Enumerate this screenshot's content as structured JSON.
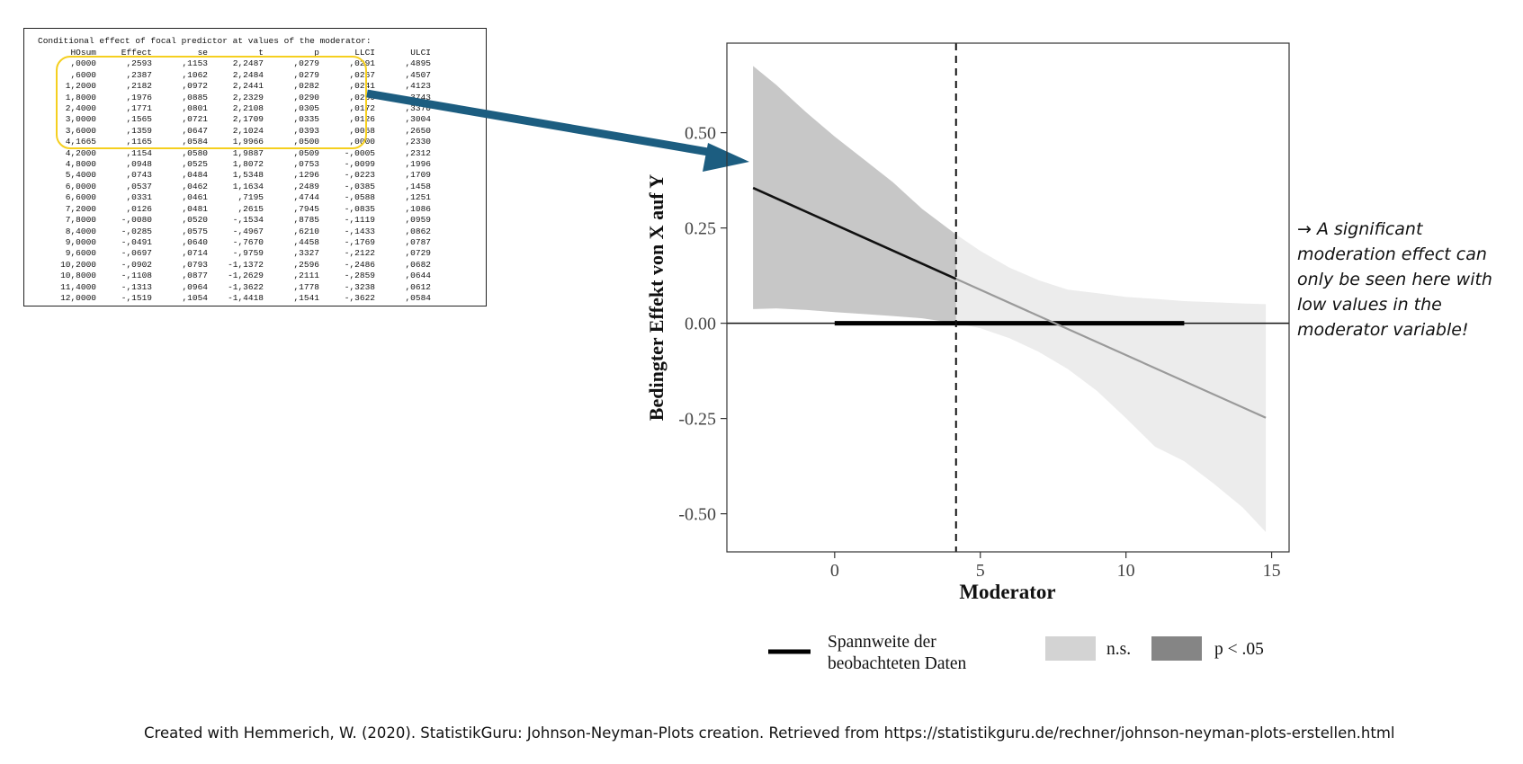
{
  "output_table": {
    "title": "Conditional effect of focal predictor at values of the moderator:",
    "columns": [
      "HOsum",
      "Effect",
      "se",
      "t",
      "p",
      "LLCI",
      "ULCI"
    ],
    "rows": [
      [
        ",0000",
        ",2593",
        ",1153",
        "2,2487",
        ",0279",
        ",0291",
        ",4895"
      ],
      [
        ",6000",
        ",2387",
        ",1062",
        "2,2484",
        ",0279",
        ",0267",
        ",4507"
      ],
      [
        "1,2000",
        ",2182",
        ",0972",
        "2,2441",
        ",0282",
        ",0241",
        ",4123"
      ],
      [
        "1,8000",
        ",1976",
        ",0885",
        "2,2329",
        ",0290",
        ",0209",
        ",3743"
      ],
      [
        "2,4000",
        ",1771",
        ",0801",
        "2,2108",
        ",0305",
        ",0172",
        ",3370"
      ],
      [
        "3,0000",
        ",1565",
        ",0721",
        "2,1709",
        ",0335",
        ",0126",
        ",3004"
      ],
      [
        "3,6000",
        ",1359",
        ",0647",
        "2,1024",
        ",0393",
        ",0068",
        ",2650"
      ],
      [
        "4,1665",
        ",1165",
        ",0584",
        "1,9966",
        ",0500",
        ",0000",
        ",2330"
      ],
      [
        "4,2000",
        ",1154",
        ",0580",
        "1,9887",
        ",0509",
        "-,0005",
        ",2312"
      ],
      [
        "4,8000",
        ",0948",
        ",0525",
        "1,8072",
        ",0753",
        "-,0099",
        ",1996"
      ],
      [
        "5,4000",
        ",0743",
        ",0484",
        "1,5348",
        ",1296",
        "-,0223",
        ",1709"
      ],
      [
        "6,0000",
        ",0537",
        ",0462",
        "1,1634",
        ",2489",
        "-,0385",
        ",1458"
      ],
      [
        "6,6000",
        ",0331",
        ",0461",
        ",7195",
        ",4744",
        "-,0588",
        ",1251"
      ],
      [
        "7,2000",
        ",0126",
        ",0481",
        ",2615",
        ",7945",
        "-,0835",
        ",1086"
      ],
      [
        "7,8000",
        "-,0080",
        ",0520",
        "-,1534",
        ",8785",
        "-,1119",
        ",0959"
      ],
      [
        "8,4000",
        "-,0285",
        ",0575",
        "-,4967",
        ",6210",
        "-,1433",
        ",0862"
      ],
      [
        "9,0000",
        "-,0491",
        ",0640",
        "-,7670",
        ",4458",
        "-,1769",
        ",0787"
      ],
      [
        "9,6000",
        "-,0697",
        ",0714",
        "-,9759",
        ",3327",
        "-,2122",
        ",0729"
      ],
      [
        "10,2000",
        "-,0902",
        ",0793",
        "-1,1372",
        ",2596",
        "-,2486",
        ",0682"
      ],
      [
        "10,8000",
        "-,1108",
        ",0877",
        "-1,2629",
        ",2111",
        "-,2859",
        ",0644"
      ],
      [
        "11,4000",
        "-,1313",
        ",0964",
        "-1,3622",
        ",1778",
        "-,3238",
        ",0612"
      ],
      [
        "12,0000",
        "-,1519",
        ",1054",
        "-1,4418",
        ",1541",
        "-,3622",
        ",0584"
      ]
    ]
  },
  "colors": {
    "highlight_box": "#f5cf1f",
    "arrow": "#1c5d80",
    "band_significant": "#c7c7c7",
    "band_ns": "#ececec",
    "line_significant": "#111111",
    "line_ns": "#9a9a9a",
    "legend_ns": "#d3d3d3",
    "legend_sig": "#858585"
  },
  "chart_data": {
    "type": "line",
    "xlabel": "Moderator",
    "ylabel": "Bedingter Effekt von X auf Y",
    "xlim": [
      -3.7,
      15.6
    ],
    "ylim": [
      -0.6,
      0.735
    ],
    "x_ticks": [
      0,
      5,
      10,
      15
    ],
    "y_ticks": [
      0.5,
      0.25,
      0.0,
      -0.25,
      -0.5
    ],
    "y_tick_labels": [
      "0.50",
      "0.25",
      "0.00",
      "-0.25",
      "-0.50"
    ],
    "johnson_neyman_point": 4.1665,
    "observed_range": [
      0,
      12
    ],
    "effect_line": {
      "x_start": -2.8,
      "y_start": 0.355,
      "x_end": 14.8,
      "y_end": -0.248
    },
    "ci_band": {
      "x": [
        -2.8,
        -2,
        -1,
        0,
        1,
        2,
        3,
        4.1665,
        5,
        6,
        7,
        8,
        9,
        10,
        11,
        12,
        13,
        14,
        14.8
      ],
      "lower": [
        0.037,
        0.039,
        0.035,
        0.029,
        0.024,
        0.019,
        0.013,
        0.0,
        -0.013,
        -0.039,
        -0.075,
        -0.12,
        -0.177,
        -0.249,
        -0.324,
        -0.362,
        -0.42,
        -0.483,
        -0.548
      ],
      "upper": [
        0.675,
        0.625,
        0.555,
        0.49,
        0.43,
        0.37,
        0.3,
        0.233,
        0.19,
        0.146,
        0.113,
        0.088,
        0.079,
        0.069,
        0.064,
        0.058,
        0.055,
        0.052,
        0.05
      ]
    },
    "legend": {
      "range_label_line1": "Spannweite der",
      "range_label_line2": "beobachteten Daten",
      "ns_label": "n.s.",
      "sig_label": "p < .05"
    }
  },
  "annotation": {
    "arrow_glyph": "→",
    "text": "A significant moderation effect can only be seen here with low values in the moderator variable!"
  },
  "credit": "Created with Hemmerich, W. (2020). StatistikGuru: Johnson-Neyman-Plots creation. Retrieved from https://statistikguru.de/rechner/johnson-neyman-plots-erstellen.html"
}
